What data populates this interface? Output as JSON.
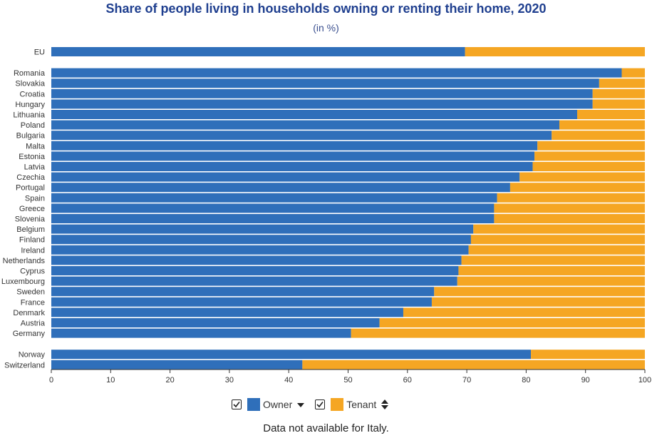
{
  "title": "Share of people living in households owning or renting their home, 2020",
  "subtitle": "(in %)",
  "legend": {
    "owner_label": "Owner",
    "tenant_label": "Tenant",
    "owner_color": "#2f6fba",
    "tenant_color": "#f5a623",
    "owner_sort_icon": "sort-descending-icon",
    "tenant_sort_icon": "sort-both-icon"
  },
  "footnote": "Data not available for Italy.",
  "chart_data": {
    "type": "bar",
    "orientation": "horizontal",
    "stacked": true,
    "categories": [
      "EU",
      "Romania",
      "Slovakia",
      "Croatia",
      "Hungary",
      "Lithuania",
      "Poland",
      "Bulgaria",
      "Malta",
      "Estonia",
      "Latvia",
      "Czechia",
      "Portugal",
      "Spain",
      "Greece",
      "Slovenia",
      "Belgium",
      "Finland",
      "Ireland",
      "Netherlands",
      "Cyprus",
      "Luxembourg",
      "Sweden",
      "France",
      "Denmark",
      "Austria",
      "Germany",
      "Norway",
      "Switzerland"
    ],
    "groups": [
      [
        "EU"
      ],
      [
        "Romania",
        "Slovakia",
        "Croatia",
        "Hungary",
        "Lithuania",
        "Poland",
        "Bulgaria",
        "Malta",
        "Estonia",
        "Latvia",
        "Czechia",
        "Portugal",
        "Spain",
        "Greece",
        "Slovenia",
        "Belgium",
        "Finland",
        "Ireland",
        "Netherlands",
        "Cyprus",
        "Luxembourg",
        "Sweden",
        "France",
        "Denmark",
        "Austria",
        "Germany"
      ],
      [
        "Norway",
        "Switzerland"
      ]
    ],
    "series": [
      {
        "name": "Owner",
        "color": "#2f6fba",
        "values": [
          69.7,
          96.1,
          92.3,
          91.2,
          91.2,
          88.6,
          85.6,
          84.3,
          81.9,
          81.4,
          81.1,
          78.9,
          77.3,
          75.1,
          74.6,
          74.6,
          71.1,
          70.7,
          70.3,
          69.1,
          68.6,
          68.4,
          64.5,
          64.1,
          59.3,
          55.3,
          50.5,
          80.8,
          42.3
        ]
      },
      {
        "name": "Tenant",
        "color": "#f5a623",
        "values": [
          30.3,
          3.9,
          7.7,
          8.8,
          8.8,
          11.4,
          14.4,
          15.7,
          18.1,
          18.6,
          18.9,
          21.1,
          22.7,
          24.9,
          25.4,
          25.4,
          28.9,
          29.3,
          29.7,
          30.9,
          31.4,
          31.6,
          35.5,
          35.9,
          40.7,
          44.7,
          49.5,
          19.2,
          57.7
        ]
      }
    ],
    "xlim": [
      0,
      100
    ],
    "xticks": [
      0,
      10,
      20,
      30,
      40,
      50,
      60,
      70,
      80,
      90,
      100
    ],
    "grid": false,
    "legend_position": "bottom"
  }
}
